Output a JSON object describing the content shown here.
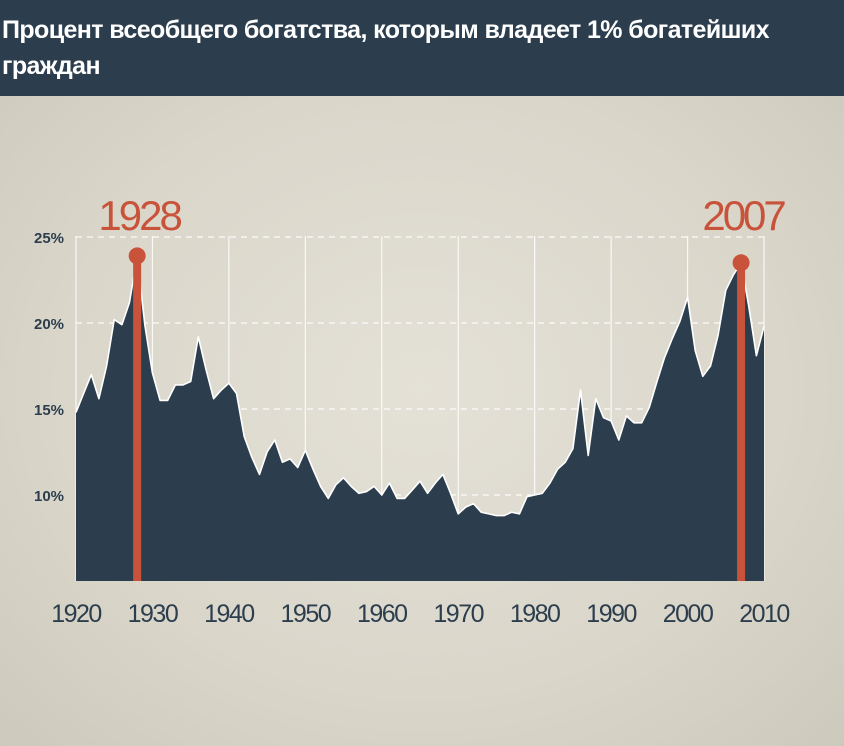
{
  "title": "Процент всеобщего богатства, которым владеет 1% богатейших граждан",
  "colors": {
    "title_bg": "#2c3e4e",
    "area": "#2c3e4e",
    "highlight": "#c8533a",
    "background": "#dcd8cc",
    "gridline": "#ffffff",
    "axis_text": "#2c3e4e"
  },
  "chart_data": {
    "type": "area",
    "title": "Процент всеобщего богатства, которым владеет 1% богатейших граждан",
    "xlabel": "",
    "ylabel": "",
    "xlim": [
      1920,
      2010
    ],
    "ylim": [
      5,
      25
    ],
    "x_ticks": [
      "1920",
      "1930",
      "1940",
      "1950",
      "1960",
      "1970",
      "1980",
      "1990",
      "2000",
      "2010"
    ],
    "y_ticks": [
      "10%",
      "15%",
      "20%",
      "25%"
    ],
    "grid": true,
    "series": [
      {
        "x": [
          1920,
          1921,
          1922,
          1923,
          1924,
          1925,
          1926,
          1927,
          1928,
          1929,
          1930,
          1931,
          1932,
          1933,
          1934,
          1935,
          1936,
          1937,
          1938,
          1939,
          1940,
          1941,
          1942,
          1943,
          1944,
          1945,
          1946,
          1947,
          1948,
          1949,
          1950,
          1951,
          1952,
          1953,
          1954,
          1955,
          1956,
          1957,
          1958,
          1959,
          1960,
          1961,
          1962,
          1963,
          1964,
          1965,
          1966,
          1967,
          1968,
          1969,
          1970,
          1971,
          1972,
          1973,
          1974,
          1975,
          1976,
          1977,
          1978,
          1979,
          1980,
          1981,
          1982,
          1983,
          1984,
          1985,
          1986,
          1987,
          1988,
          1989,
          1990,
          1991,
          1992,
          1993,
          1994,
          1995,
          1996,
          1997,
          1998,
          1999,
          2000,
          2001,
          2002,
          2003,
          2004,
          2005,
          2006,
          2007,
          2008,
          2009,
          2010
        ],
        "y": [
          14.8,
          15.9,
          17.0,
          15.6,
          17.5,
          20.2,
          19.9,
          21.2,
          23.9,
          19.9,
          17.1,
          15.5,
          15.5,
          16.4,
          16.4,
          16.6,
          19.2,
          17.3,
          15.6,
          16.1,
          16.5,
          15.9,
          13.4,
          12.2,
          11.2,
          12.5,
          13.2,
          11.9,
          12.1,
          11.6,
          12.6,
          11.5,
          10.5,
          9.8,
          10.6,
          11.0,
          10.5,
          10.1,
          10.2,
          10.5,
          10.0,
          10.7,
          9.8,
          9.8,
          10.3,
          10.8,
          10.1,
          10.7,
          11.2,
          10.1,
          8.9,
          9.3,
          9.5,
          9.0,
          8.9,
          8.8,
          8.8,
          9.0,
          8.9,
          9.9,
          10.0,
          10.1,
          10.7,
          11.5,
          11.9,
          12.7,
          16.1,
          12.3,
          15.6,
          14.5,
          14.3,
          13.2,
          14.6,
          14.2,
          14.2,
          15.1,
          16.6,
          18.0,
          19.1,
          20.1,
          21.5,
          18.4,
          16.9,
          17.5,
          19.3,
          21.9,
          22.8,
          23.5,
          21.0,
          18.1,
          19.8
        ],
        "color": "#2c3e4e"
      }
    ],
    "highlights": [
      {
        "label": "1928",
        "x": 1928,
        "y": 23.9
      },
      {
        "label": "2007",
        "x": 2007,
        "y": 23.5
      }
    ]
  }
}
